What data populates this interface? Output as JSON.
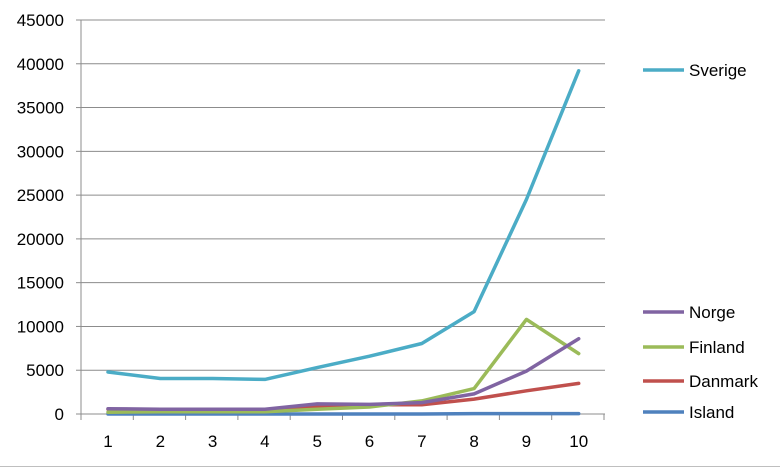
{
  "chart_data": {
    "type": "line",
    "title": "",
    "xlabel": "",
    "ylabel": "",
    "x": [
      1,
      2,
      3,
      4,
      5,
      6,
      7,
      8,
      9,
      10
    ],
    "x_tick_labels": [
      "1",
      "2",
      "3",
      "4",
      "5",
      "6",
      "7",
      "8",
      "9",
      "10"
    ],
    "ylim": [
      0,
      45000
    ],
    "y_ticks": [
      0,
      5000,
      10000,
      15000,
      20000,
      25000,
      30000,
      35000,
      40000,
      45000
    ],
    "y_tick_labels": [
      "0",
      "5000",
      "10000",
      "15000",
      "20000",
      "25000",
      "30000",
      "35000",
      "40000",
      "45000"
    ],
    "grid": "horizontal",
    "legend_position": "right",
    "series": [
      {
        "name": "Sverige",
        "color": "#4BACC6",
        "values": [
          4800,
          4050,
          4050,
          3950,
          5300,
          6600,
          8050,
          11700,
          24500,
          39200
        ]
      },
      {
        "name": "Norge",
        "color": "#8064A2",
        "values": [
          600,
          550,
          550,
          550,
          1150,
          1100,
          1300,
          2300,
          4900,
          8600
        ]
      },
      {
        "name": "Finland",
        "color": "#9BBB59",
        "values": [
          200,
          250,
          250,
          250,
          550,
          800,
          1500,
          2900,
          10800,
          6900
        ]
      },
      {
        "name": "Danmark",
        "color": "#C0504D",
        "values": [
          550,
          500,
          500,
          500,
          850,
          1050,
          1050,
          1700,
          2650,
          3500
        ]
      },
      {
        "name": "Island",
        "color": "#4F81BD",
        "values": [
          0,
          0,
          0,
          0,
          0,
          0,
          0,
          50,
          50,
          50
        ]
      }
    ]
  }
}
